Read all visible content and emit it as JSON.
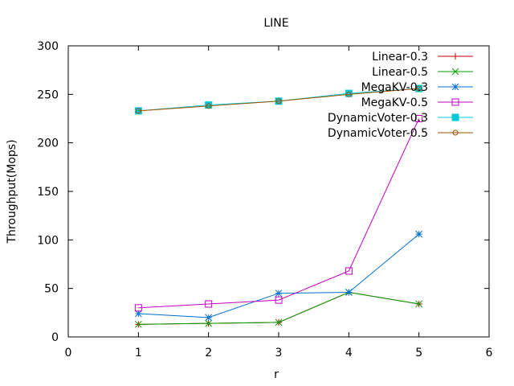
{
  "chart_data": {
    "type": "line",
    "title": "LINE",
    "xlabel": "r",
    "ylabel": "Throughput(Mops)",
    "xlim": [
      0,
      6
    ],
    "ylim": [
      0,
      300
    ],
    "xticks": [
      "0",
      "1",
      "2",
      "3",
      "4",
      "5",
      "6"
    ],
    "yticks": [
      "0",
      "50",
      "100",
      "150",
      "200",
      "250",
      "300"
    ],
    "grid": false,
    "legend_position": "top-right",
    "x": [
      1,
      2,
      3,
      4,
      5
    ],
    "series": [
      {
        "name": "Linear-0.3",
        "color": "#c00000",
        "marker": "plus",
        "values": [
          13,
          14,
          15,
          46,
          34
        ]
      },
      {
        "name": "Linear-0.5",
        "color": "#00a000",
        "marker": "cross",
        "values": [
          13,
          14,
          15,
          46,
          34
        ]
      },
      {
        "name": "MegaKV-0.3",
        "color": "#0070d0",
        "marker": "star",
        "values": [
          24,
          20,
          45,
          46,
          106
        ]
      },
      {
        "name": "MegaKV-0.5",
        "color": "#c000c0",
        "marker": "square-open",
        "values": [
          30,
          34,
          38,
          68,
          225
        ]
      },
      {
        "name": "DynamicVoter-0.3",
        "color": "#00c8d8",
        "marker": "square-filled",
        "values": [
          233,
          239,
          243,
          251,
          256
        ]
      },
      {
        "name": "DynamicVoter-0.5",
        "color": "#a05000",
        "marker": "circle-open",
        "values": [
          233,
          238,
          243,
          250,
          256
        ]
      }
    ]
  }
}
